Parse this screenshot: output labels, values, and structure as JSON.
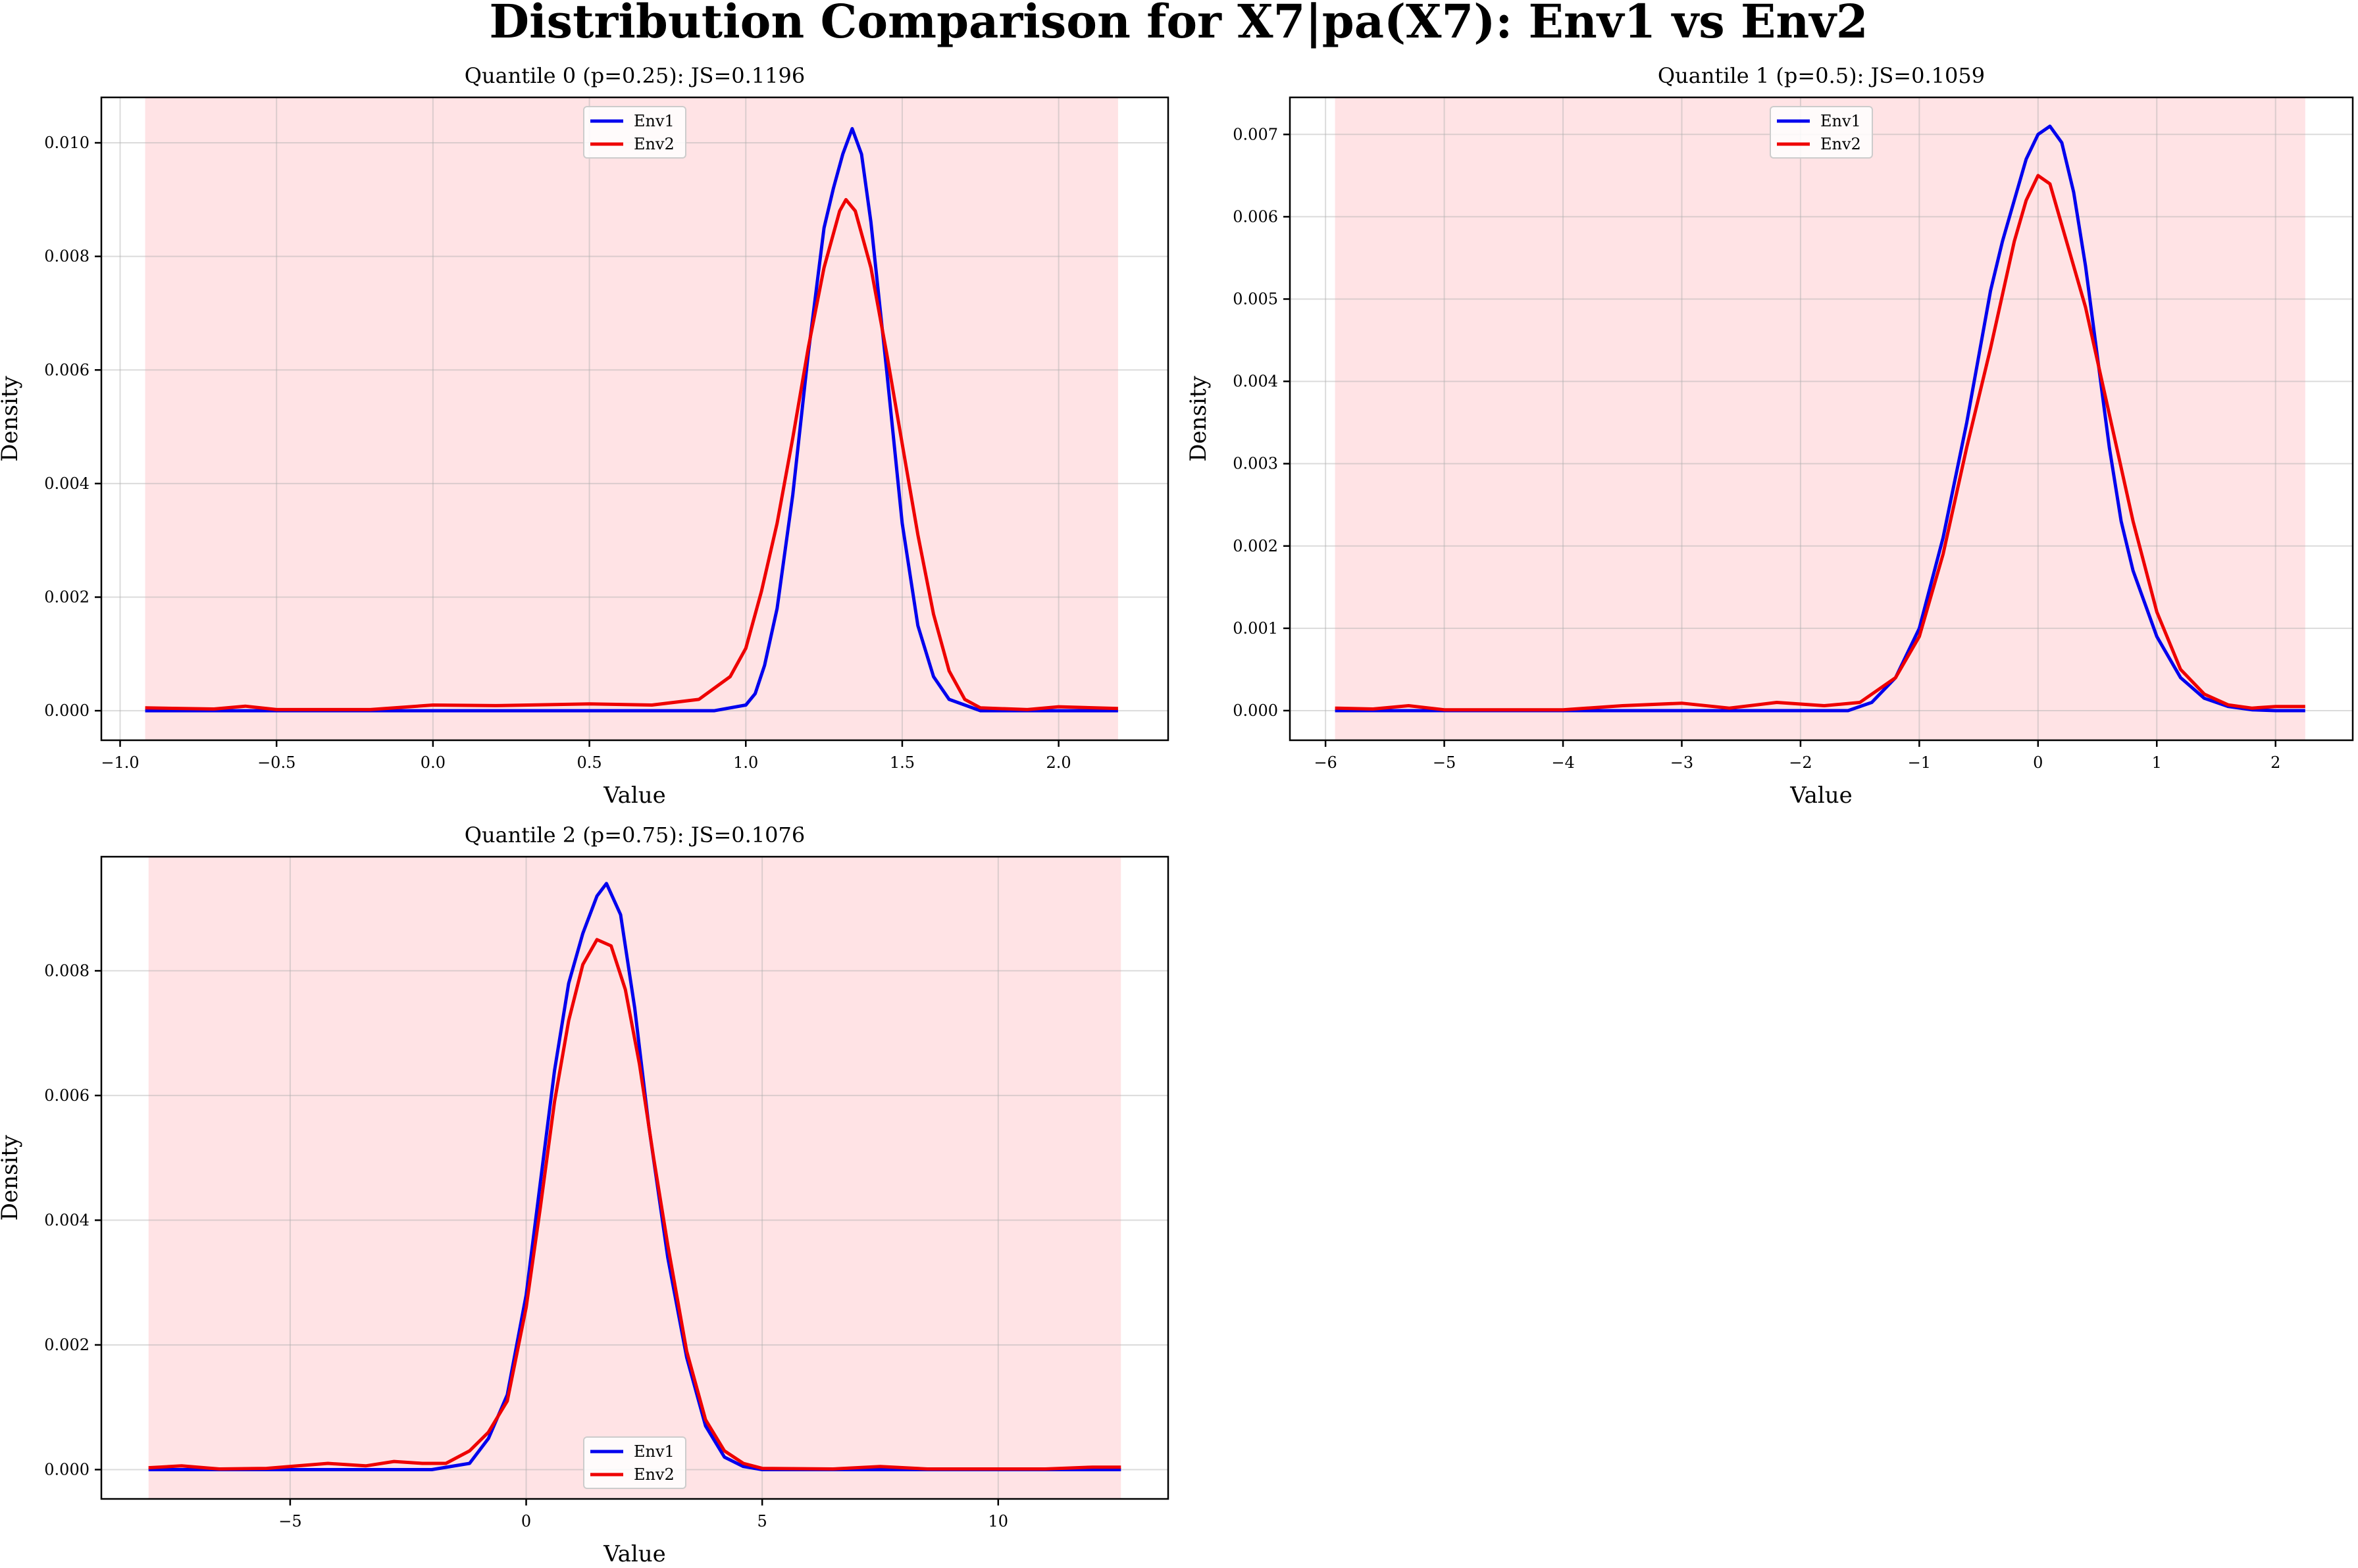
{
  "suptitle": "Distribution Comparison for X7|pa(X7): Env1 vs Env2",
  "chart_data": [
    {
      "type": "line",
      "title": "Quantile 0 (p=0.25): JS=0.1196",
      "xlabel": "Value",
      "ylabel": "Density",
      "xlim": [
        -1.06,
        2.35
      ],
      "ylim": [
        -0.00052,
        0.0108
      ],
      "xticks": [
        -1.0,
        -0.5,
        0.0,
        0.5,
        1.0,
        1.5,
        2.0
      ],
      "xticklabels": [
        "−1.0",
        "−0.5",
        "0.0",
        "0.5",
        "1.0",
        "1.5",
        "2.0"
      ],
      "yticks": [
        0.0,
        0.002,
        0.004,
        0.006,
        0.008,
        0.01
      ],
      "yticklabels": [
        "0.000",
        "0.002",
        "0.004",
        "0.006",
        "0.008",
        "0.010"
      ],
      "shaded_range": [
        -0.92,
        2.19
      ],
      "grid": true,
      "legend": "upper center",
      "series": [
        {
          "name": "Env1",
          "color": "#0000ee",
          "x": [
            -0.92,
            0.0,
            0.5,
            0.9,
            1.0,
            1.03,
            1.06,
            1.1,
            1.15,
            1.2,
            1.25,
            1.28,
            1.31,
            1.34,
            1.37,
            1.4,
            1.45,
            1.5,
            1.55,
            1.6,
            1.65,
            1.7,
            1.75,
            1.85,
            2.0,
            2.19
          ],
          "y": [
            0.0,
            0.0,
            0.0,
            0.0,
            0.0001,
            0.0003,
            0.0008,
            0.0018,
            0.0038,
            0.0063,
            0.0085,
            0.0092,
            0.0098,
            0.01025,
            0.0098,
            0.0086,
            0.006,
            0.0033,
            0.0015,
            0.0006,
            0.0002,
            0.0001,
            0.0,
            0.0,
            0.0,
            0.0
          ]
        },
        {
          "name": "Env2",
          "color": "#ee0000",
          "x": [
            -0.92,
            -0.7,
            -0.6,
            -0.5,
            -0.2,
            0.0,
            0.2,
            0.5,
            0.7,
            0.85,
            0.95,
            1.0,
            1.05,
            1.1,
            1.15,
            1.2,
            1.25,
            1.3,
            1.32,
            1.35,
            1.4,
            1.45,
            1.5,
            1.55,
            1.6,
            1.65,
            1.7,
            1.75,
            1.9,
            2.0,
            2.19
          ],
          "y": [
            5e-05,
            3e-05,
            8e-05,
            2e-05,
            2e-05,
            0.0001,
            9e-05,
            0.00012,
            0.0001,
            0.0002,
            0.0006,
            0.0011,
            0.0021,
            0.0033,
            0.0048,
            0.0064,
            0.0078,
            0.0088,
            0.009,
            0.0088,
            0.0078,
            0.0063,
            0.0047,
            0.0031,
            0.0017,
            0.0007,
            0.0002,
            5e-05,
            2e-05,
            7e-05,
            4e-05
          ]
        }
      ]
    },
    {
      "type": "line",
      "title": "Quantile 1 (p=0.5): JS=0.1059",
      "xlabel": "Value",
      "ylabel": "Density",
      "xlim": [
        -6.3,
        2.65
      ],
      "ylim": [
        -0.00036,
        0.00745
      ],
      "xticks": [
        -6,
        -5,
        -4,
        -3,
        -2,
        -1,
        0,
        1,
        2
      ],
      "xticklabels": [
        "−6",
        "−5",
        "−4",
        "−3",
        "−2",
        "−1",
        "0",
        "1",
        "2"
      ],
      "yticks": [
        0.0,
        0.001,
        0.002,
        0.003,
        0.004,
        0.005,
        0.006,
        0.007
      ],
      "yticklabels": [
        "0.000",
        "0.001",
        "0.002",
        "0.003",
        "0.004",
        "0.005",
        "0.006",
        "0.007"
      ],
      "shaded_range": [
        -5.92,
        2.25
      ],
      "grid": true,
      "legend": "upper center",
      "series": [
        {
          "name": "Env1",
          "color": "#0000ee",
          "x": [
            -5.92,
            -3.0,
            -2.0,
            -1.6,
            -1.4,
            -1.2,
            -1.0,
            -0.8,
            -0.6,
            -0.4,
            -0.3,
            -0.2,
            -0.1,
            0.0,
            0.1,
            0.2,
            0.3,
            0.4,
            0.5,
            0.6,
            0.7,
            0.8,
            1.0,
            1.2,
            1.4,
            1.6,
            1.8,
            2.0,
            2.25
          ],
          "y": [
            0.0,
            0.0,
            0.0,
            0.0,
            0.0001,
            0.0004,
            0.001,
            0.0021,
            0.0035,
            0.0051,
            0.0057,
            0.0062,
            0.0067,
            0.007,
            0.0071,
            0.0069,
            0.0063,
            0.0054,
            0.0043,
            0.0032,
            0.0023,
            0.0017,
            0.0009,
            0.0004,
            0.00015,
            5e-05,
            1e-05,
            0.0,
            0.0
          ]
        },
        {
          "name": "Env2",
          "color": "#ee0000",
          "x": [
            -5.92,
            -5.6,
            -5.3,
            -5.0,
            -4.0,
            -3.5,
            -3.0,
            -2.6,
            -2.2,
            -1.8,
            -1.5,
            -1.2,
            -1.0,
            -0.8,
            -0.6,
            -0.4,
            -0.2,
            -0.1,
            0.0,
            0.1,
            0.2,
            0.4,
            0.6,
            0.8,
            1.0,
            1.2,
            1.4,
            1.6,
            1.8,
            2.0,
            2.25
          ],
          "y": [
            3e-05,
            2e-05,
            6e-05,
            1e-05,
            1e-05,
            6e-05,
            9e-05,
            3e-05,
            0.0001,
            6e-05,
            0.0001,
            0.0004,
            0.0009,
            0.0019,
            0.0032,
            0.0044,
            0.0057,
            0.0062,
            0.0065,
            0.0064,
            0.0059,
            0.0049,
            0.0036,
            0.0023,
            0.0012,
            0.0005,
            0.0002,
            7e-05,
            3e-05,
            5e-05,
            5e-05
          ]
        }
      ]
    },
    {
      "type": "line",
      "title": "Quantile 2 (p=0.75): JS=0.1076",
      "xlabel": "Value",
      "ylabel": "Density",
      "xlim": [
        -9.0,
        13.6
      ],
      "ylim": [
        -0.00047,
        0.00983
      ],
      "xticks": [
        -5,
        0,
        5,
        10
      ],
      "xticklabels": [
        "−5",
        "0",
        "5",
        "10"
      ],
      "yticks": [
        0.0,
        0.002,
        0.004,
        0.006,
        0.008
      ],
      "yticklabels": [
        "0.000",
        "0.002",
        "0.004",
        "0.006",
        "0.008"
      ],
      "shaded_range": [
        -8.0,
        12.6
      ],
      "grid": true,
      "legend": "lower center",
      "series": [
        {
          "name": "Env1",
          "color": "#0000ee",
          "x": [
            -8.0,
            -4.0,
            -2.0,
            -1.2,
            -0.8,
            -0.4,
            0.0,
            0.3,
            0.6,
            0.9,
            1.2,
            1.5,
            1.7,
            2.0,
            2.3,
            2.6,
            3.0,
            3.4,
            3.8,
            4.2,
            4.6,
            5.0,
            8.0,
            12.6
          ],
          "y": [
            0.0,
            0.0,
            0.0,
            0.0001,
            0.0005,
            0.0012,
            0.0028,
            0.0046,
            0.0064,
            0.0078,
            0.0086,
            0.0092,
            0.0094,
            0.0089,
            0.0074,
            0.0055,
            0.0034,
            0.0018,
            0.0007,
            0.0002,
            5e-05,
            0.0,
            0.0,
            0.0
          ]
        },
        {
          "name": "Env2",
          "color": "#ee0000",
          "x": [
            -8.0,
            -7.3,
            -6.5,
            -5.5,
            -4.2,
            -3.4,
            -2.8,
            -2.2,
            -1.7,
            -1.2,
            -0.8,
            -0.4,
            0.0,
            0.3,
            0.6,
            0.9,
            1.2,
            1.5,
            1.8,
            2.1,
            2.4,
            2.7,
            3.0,
            3.4,
            3.8,
            4.2,
            4.6,
            5.0,
            6.5,
            7.5,
            8.5,
            11.0,
            12.0,
            12.6
          ],
          "y": [
            3e-05,
            6e-05,
            1e-05,
            2e-05,
            0.0001,
            6e-05,
            0.00013,
            0.0001,
            0.0001,
            0.0003,
            0.0006,
            0.0011,
            0.0026,
            0.0042,
            0.0059,
            0.0072,
            0.0081,
            0.0085,
            0.0084,
            0.0077,
            0.0065,
            0.005,
            0.0036,
            0.0019,
            0.0008,
            0.0003,
            0.0001,
            2e-05,
            1e-05,
            5e-05,
            1e-05,
            1e-05,
            4e-05,
            4e-05
          ]
        }
      ]
    }
  ]
}
